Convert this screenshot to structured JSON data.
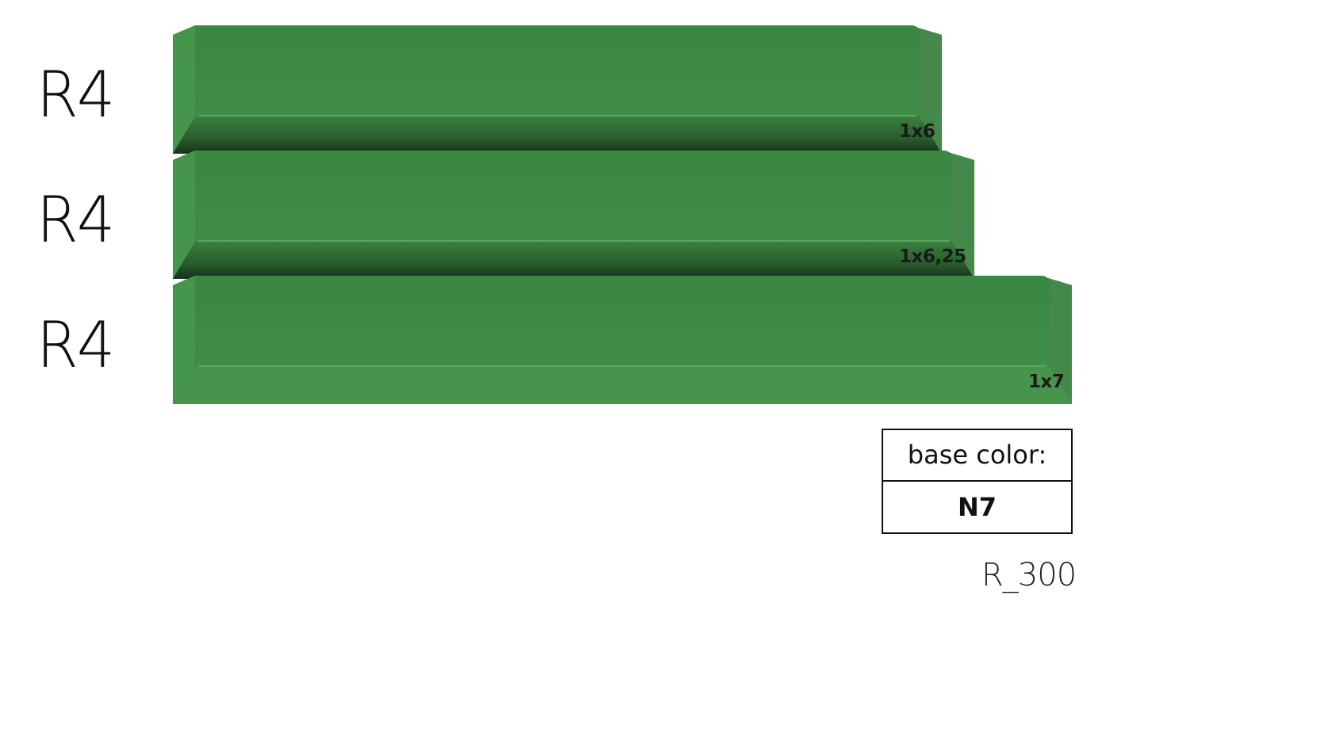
{
  "rows": [
    {
      "profile": "R4",
      "size": "1x6"
    },
    {
      "profile": "R4",
      "size": "1x6,25"
    },
    {
      "profile": "R4",
      "size": "1x7"
    }
  ],
  "color_box": {
    "header": "base color:",
    "value": "N7"
  },
  "code": "R_300",
  "colors": {
    "keycap_green": "#3c8a44",
    "keycap_green_light": "#4a9a50",
    "keycap_shadow": "#1c3a20"
  }
}
